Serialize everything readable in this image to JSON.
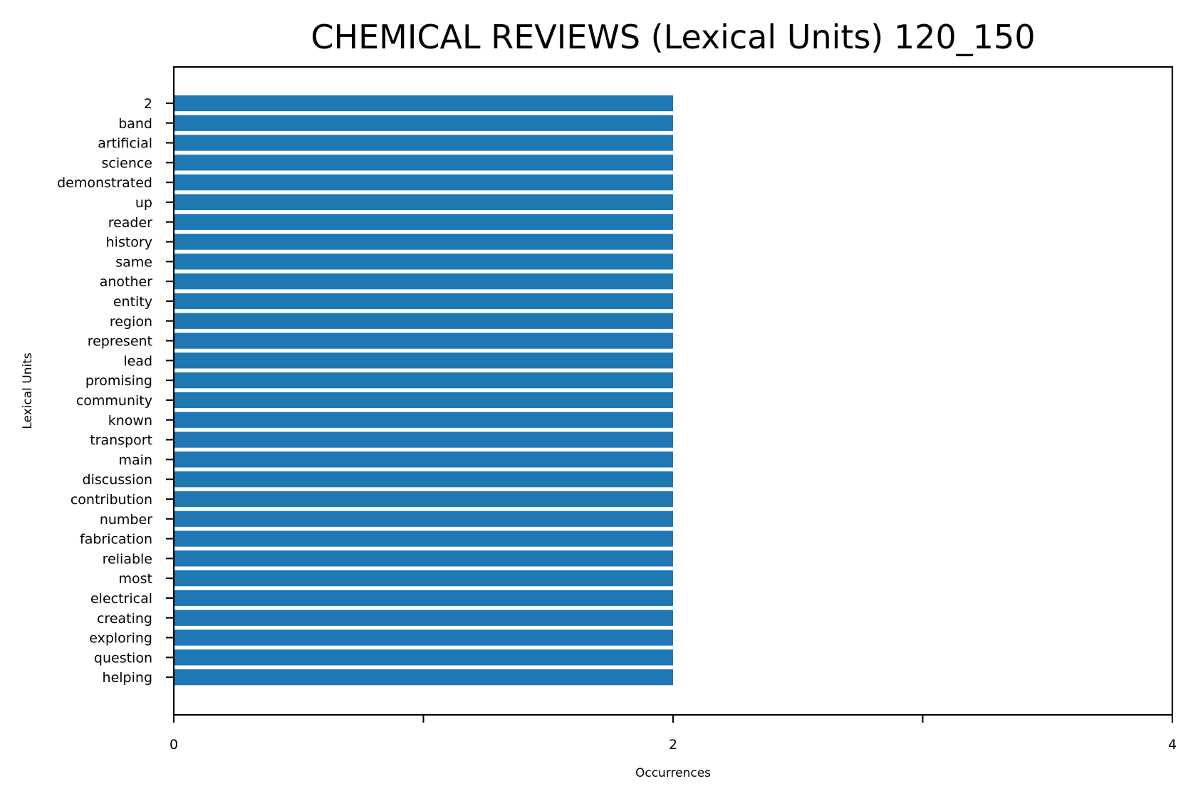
{
  "chart_data": {
    "type": "bar",
    "orientation": "horizontal",
    "title": "CHEMICAL REVIEWS (Lexical Units) 120_150",
    "xlabel": "Occurrences",
    "ylabel": "Lexical Units",
    "xlim": [
      0,
      4
    ],
    "xticks": [
      0,
      1,
      2,
      3,
      4
    ],
    "xtick_labels": [
      "0",
      "",
      "2",
      "",
      "4"
    ],
    "categories": [
      "2",
      "band",
      "artificial",
      "science",
      "demonstrated",
      "up",
      "reader",
      "history",
      "same",
      "another",
      "entity",
      "region",
      "represent",
      "lead",
      "promising",
      "community",
      "known",
      "transport",
      "main",
      "discussion",
      "contribution",
      "number",
      "fabrication",
      "reliable",
      "most",
      "electrical",
      "creating",
      "exploring",
      "question",
      "helping"
    ],
    "values": [
      2,
      2,
      2,
      2,
      2,
      2,
      2,
      2,
      2,
      2,
      2,
      2,
      2,
      2,
      2,
      2,
      2,
      2,
      2,
      2,
      2,
      2,
      2,
      2,
      2,
      2,
      2,
      2,
      2,
      2
    ],
    "bar_color": "#1f77b4",
    "grid": false,
    "legend": "none"
  }
}
